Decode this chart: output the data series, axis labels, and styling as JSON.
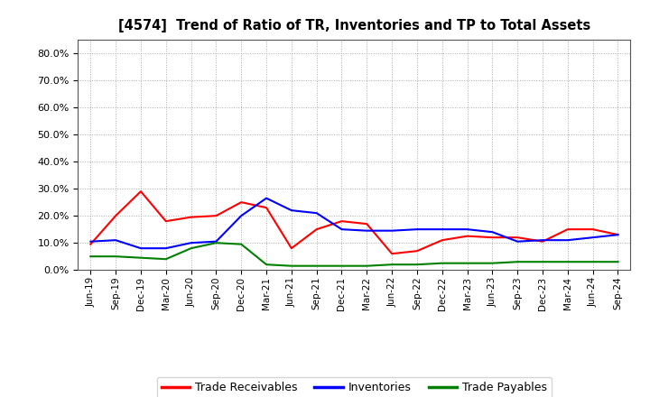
{
  "title": "[4574]  Trend of Ratio of TR, Inventories and TP to Total Assets",
  "x_labels": [
    "Jun-19",
    "Sep-19",
    "Dec-19",
    "Mar-20",
    "Jun-20",
    "Sep-20",
    "Dec-20",
    "Mar-21",
    "Jun-21",
    "Sep-21",
    "Dec-21",
    "Mar-22",
    "Jun-22",
    "Sep-22",
    "Dec-22",
    "Mar-23",
    "Jun-23",
    "Sep-23",
    "Dec-23",
    "Mar-24",
    "Jun-24",
    "Sep-24"
  ],
  "trade_receivables": [
    9.5,
    20.0,
    29.0,
    18.0,
    19.5,
    20.0,
    25.0,
    23.0,
    8.0,
    15.0,
    18.0,
    17.0,
    6.0,
    7.0,
    11.0,
    12.5,
    12.0,
    12.0,
    10.5,
    15.0,
    15.0,
    13.0
  ],
  "inventories": [
    10.5,
    11.0,
    8.0,
    8.0,
    10.0,
    10.5,
    20.0,
    26.5,
    22.0,
    21.0,
    15.0,
    14.5,
    14.5,
    15.0,
    15.0,
    15.0,
    14.0,
    10.5,
    11.0,
    11.0,
    12.0,
    13.0
  ],
  "trade_payables": [
    5.0,
    5.0,
    4.5,
    4.0,
    8.0,
    10.0,
    9.5,
    2.0,
    1.5,
    1.5,
    1.5,
    1.5,
    2.0,
    2.0,
    2.5,
    2.5,
    2.5,
    3.0,
    3.0,
    3.0,
    3.0,
    3.0
  ],
  "tr_color": "#ff0000",
  "inv_color": "#0000ff",
  "tp_color": "#008000",
  "ylim_pct": [
    0.0,
    85.0
  ],
  "ytick_pct": [
    0.0,
    10.0,
    20.0,
    30.0,
    40.0,
    50.0,
    60.0,
    70.0,
    80.0
  ],
  "background_color": "#ffffff",
  "grid_color": "#aaaaaa",
  "legend_labels": [
    "Trade Receivables",
    "Inventories",
    "Trade Payables"
  ]
}
